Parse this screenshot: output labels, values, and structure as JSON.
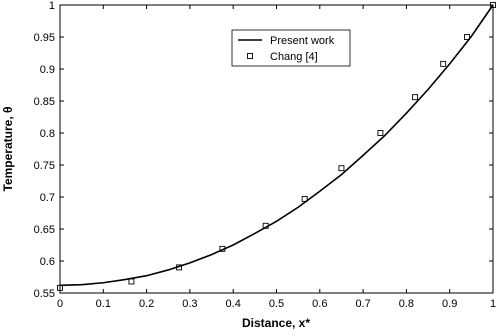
{
  "chart_data": {
    "type": "line",
    "xlabel": "Distance, x*",
    "ylabel": "Temperature, θ",
    "xlim": [
      0,
      1
    ],
    "xticks": [
      0,
      0.1,
      0.2,
      0.3,
      0.4,
      0.5,
      0.6,
      0.7,
      0.8,
      0.9,
      1
    ],
    "ylim": [
      0.55,
      1
    ],
    "yticks": [
      0.55,
      0.6,
      0.65,
      0.7,
      0.75,
      0.8,
      0.85,
      0.9,
      0.95,
      1
    ],
    "legend": "top-center",
    "series": [
      {
        "name": "Present work",
        "color": "#000000",
        "style": "line",
        "x": [
          0,
          0.05,
          0.1,
          0.15,
          0.2,
          0.25,
          0.3,
          0.35,
          0.4,
          0.45,
          0.5,
          0.55,
          0.6,
          0.65,
          0.7,
          0.75,
          0.8,
          0.85,
          0.9,
          0.95,
          1
        ],
        "values": [
          0.562,
          0.563,
          0.566,
          0.571,
          0.577,
          0.586,
          0.597,
          0.61,
          0.625,
          0.643,
          0.662,
          0.684,
          0.709,
          0.735,
          0.765,
          0.796,
          0.831,
          0.868,
          0.908,
          0.951,
          1
        ]
      },
      {
        "name": "Chang [4]",
        "color": "#000000",
        "style": "marker",
        "x": [
          0,
          0.165,
          0.275,
          0.375,
          0.475,
          0.565,
          0.65,
          0.74,
          0.82,
          0.885,
          0.94,
          1
        ],
        "values": [
          0.558,
          0.568,
          0.59,
          0.619,
          0.655,
          0.697,
          0.745,
          0.8,
          0.856,
          0.908,
          0.95,
          1
        ]
      }
    ]
  }
}
